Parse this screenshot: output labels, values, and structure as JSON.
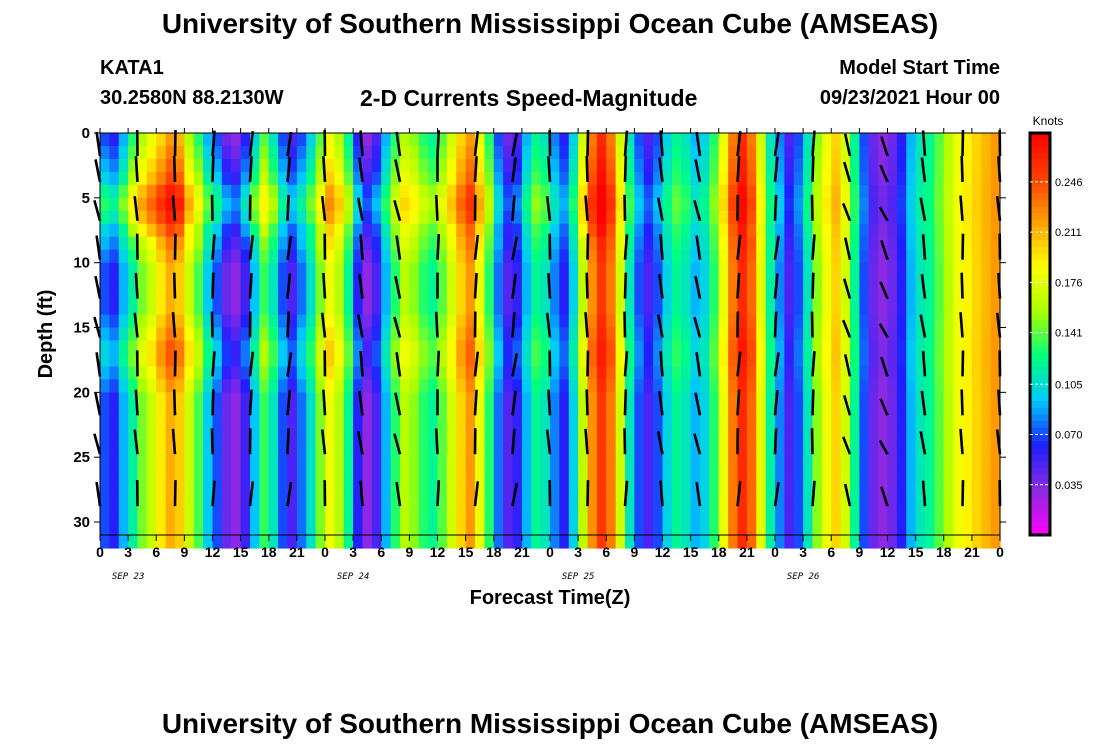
{
  "header": {
    "title": "University of Southern Mississippi Ocean Cube (AMSEAS)",
    "station": "KATA1",
    "coords": "30.2580N  88.2130W",
    "subtitle": "2-D Currents Speed-Magnitude",
    "model_start_label": "Model Start Time",
    "model_start_date": "09/23/2021 Hour 00"
  },
  "footer": {
    "title": "University of Southern Mississippi Ocean Cube (AMSEAS)"
  },
  "chart_data": {
    "type": "heatmap",
    "title": "2-D Currents Speed-Magnitude",
    "xlabel": "Forecast Time(Z)",
    "ylabel": "Depth (ft)",
    "x_tick_labels": [
      "0",
      "3",
      "6",
      "9",
      "12",
      "15",
      "18",
      "21",
      "0",
      "3",
      "6",
      "9",
      "12",
      "15",
      "18",
      "21",
      "0",
      "3",
      "6",
      "9",
      "12",
      "15",
      "18",
      "21",
      "0",
      "3",
      "6",
      "9",
      "12",
      "15",
      "18",
      "21",
      "0"
    ],
    "date_labels": [
      "SEP 23",
      "SEP 24",
      "SEP 25",
      "SEP 26"
    ],
    "y_ticks": [
      0,
      5,
      10,
      15,
      20,
      25,
      30
    ],
    "ylim": [
      0,
      31
    ],
    "xlim_hours": [
      0,
      96
    ],
    "colorbar": {
      "label": "Knots",
      "ticks": [
        "0.246",
        "0.211",
        "0.176",
        "0.141",
        "0.105",
        "0.070",
        "0.035"
      ],
      "range": [
        0,
        0.28
      ],
      "colors": [
        "#ff00ff",
        "#8a2be2",
        "#1f1fff",
        "#00c8ff",
        "#00ff80",
        "#aaff00",
        "#ffff00",
        "#ffa000",
        "#ff4000",
        "#ff0000"
      ]
    },
    "speed_by_hour": [
      0.07,
      0.06,
      0.09,
      0.11,
      0.14,
      0.16,
      0.19,
      0.21,
      0.2,
      0.17,
      0.14,
      0.1,
      0.07,
      0.04,
      0.03,
      0.05,
      0.09,
      0.13,
      0.11,
      0.07,
      0.05,
      0.08,
      0.11,
      0.15,
      0.18,
      0.16,
      0.12,
      0.06,
      0.03,
      0.05,
      0.09,
      0.13,
      0.16,
      0.15,
      0.13,
      0.12,
      0.14,
      0.17,
      0.2,
      0.22,
      0.18,
      0.13,
      0.08,
      0.05,
      0.06,
      0.09,
      0.12,
      0.11,
      0.08,
      0.06,
      0.1,
      0.16,
      0.22,
      0.25,
      0.23,
      0.17,
      0.11,
      0.07,
      0.05,
      0.07,
      0.1,
      0.12,
      0.11,
      0.09,
      0.1,
      0.13,
      0.18,
      0.23,
      0.26,
      0.24,
      0.18,
      0.12,
      0.08,
      0.05,
      0.07,
      0.11,
      0.15,
      0.18,
      0.2,
      0.17,
      0.12,
      0.07,
      0.04,
      0.03,
      0.04,
      0.06,
      0.09,
      0.11,
      0.12,
      0.14,
      0.16,
      0.18,
      0.19,
      0.2,
      0.21,
      0.22,
      0.2
    ],
    "surface_modulation": [
      0,
      0.02,
      0.01,
      -0.01,
      0,
      0.01,
      0,
      -0.01,
      0,
      0,
      0,
      0,
      0,
      0,
      -0.01,
      0,
      0,
      0.01,
      0,
      0,
      0,
      0,
      0,
      -0.01,
      0,
      0,
      0,
      0,
      0,
      0,
      0,
      0,
      0.01
    ],
    "depth_modulation": [
      0,
      0.01,
      0.02,
      0.03,
      0.05,
      0.06,
      0.05,
      0.03,
      0.02,
      0.01,
      0,
      0,
      0,
      0,
      0.01,
      0.02,
      0.03,
      0.03,
      0.02,
      0.01,
      0,
      0,
      0,
      0,
      0,
      0,
      0,
      0,
      0,
      0,
      0,
      0
    ],
    "vectors": {
      "times": [
        0,
        4,
        8,
        12,
        16,
        20,
        24,
        28,
        32,
        36,
        40,
        44,
        48,
        52,
        56,
        60,
        64,
        68,
        72,
        76,
        80,
        84,
        88,
        92,
        96
      ],
      "depths": [
        1,
        3,
        6,
        9,
        12,
        15,
        18,
        21,
        24,
        28
      ],
      "angles_deg": [
        120,
        100,
        95,
        85,
        80,
        75,
        100,
        110,
        120,
        90,
        80,
        70,
        100,
        95,
        85,
        110,
        120,
        80,
        75,
        85,
        130,
        140,
        110,
        95,
        100
      ]
    }
  }
}
